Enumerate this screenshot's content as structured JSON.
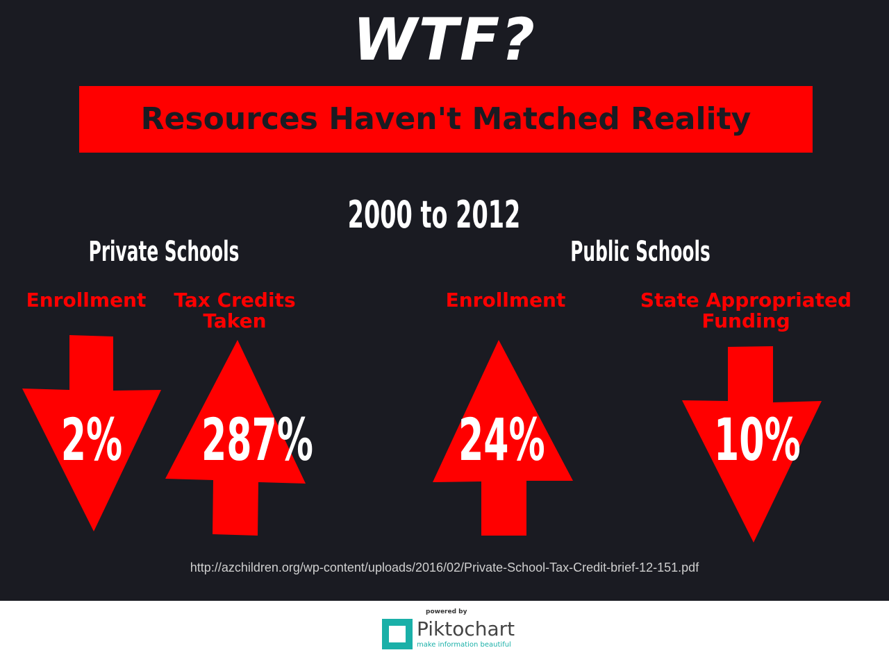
{
  "header": {
    "title": "WTF?",
    "banner": "Resources Haven't Matched Reality",
    "period": "2000 to 2012"
  },
  "groups": [
    {
      "label": "Private Schools",
      "items": [
        {
          "label": "Enrollment",
          "change": "2%"
        },
        {
          "label": "Tax Credits Taken",
          "change": "287%"
        }
      ]
    },
    {
      "label": "Public Schools",
      "items": [
        {
          "label": "Enrollment",
          "change": "24%"
        },
        {
          "label": "State Appropriated Funding",
          "change": "10%"
        }
      ]
    }
  ],
  "source": "http://azchildren.org/wp-content/uploads/2016/02/Private-School-Tax-Credit-brief-12-151.pdf",
  "footer": {
    "powered_by": "powered by",
    "brand": "Piktochart",
    "tagline": "make information beautiful"
  }
}
